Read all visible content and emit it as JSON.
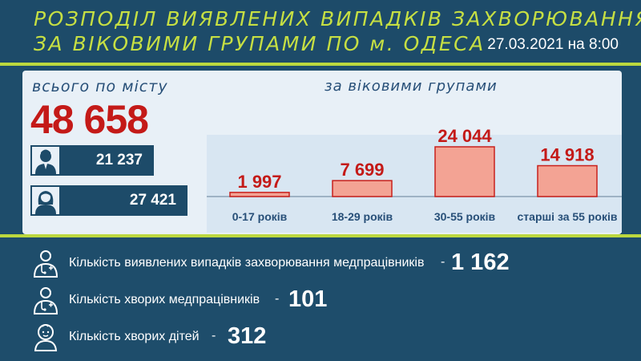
{
  "header": {
    "title_line1": "РОЗПОДІЛ ВИЯВЛЕНИХ ВИПАДКІВ ЗАХВОРЮВАННЯ",
    "title_line2": "ЗА ВІКОВИМИ ГРУПАМИ ПО м. ОДЕСА",
    "date": "27.03.2021 на 8:00"
  },
  "total": {
    "label": "всього по місту",
    "value": "48 658"
  },
  "gender": {
    "male": {
      "icon": "man-icon",
      "value": "21 237"
    },
    "female": {
      "icon": "woman-icon",
      "value": "27 421"
    }
  },
  "groups_label": "за віковими групами",
  "chart_data": {
    "type": "bar",
    "categories": [
      "0-17 років",
      "18-29 років",
      "30-55 років",
      "старші за 55 років"
    ],
    "values": [
      1997,
      7699,
      24044,
      14918
    ],
    "value_labels": [
      "1 997",
      "7 699",
      "24 044",
      "14 918"
    ],
    "ylim": [
      0,
      24044
    ],
    "grid": false,
    "colors": {
      "bar_fill": "#f3a394",
      "bar_stroke": "#c8201c",
      "value_text": "#c41a18",
      "category_text": "#274f78",
      "axis": "#8aa0b4"
    }
  },
  "stats": [
    {
      "icon": "doctor-icon",
      "label": "Кількість виявлених випадків захворювання медпрацівників",
      "dash": "-",
      "value": "1 162"
    },
    {
      "icon": "doctor-icon",
      "label": "Кількість хворих медпрацівників",
      "dash": "-",
      "value": "101"
    },
    {
      "icon": "baby-icon",
      "label": "Кількість хворих дітей",
      "dash": "-",
      "value": "312"
    }
  ],
  "colors": {
    "background": "#1e4d6b",
    "accent": "#bcd83e",
    "panel": "#e8f0f7",
    "total_red": "#c41a18"
  }
}
